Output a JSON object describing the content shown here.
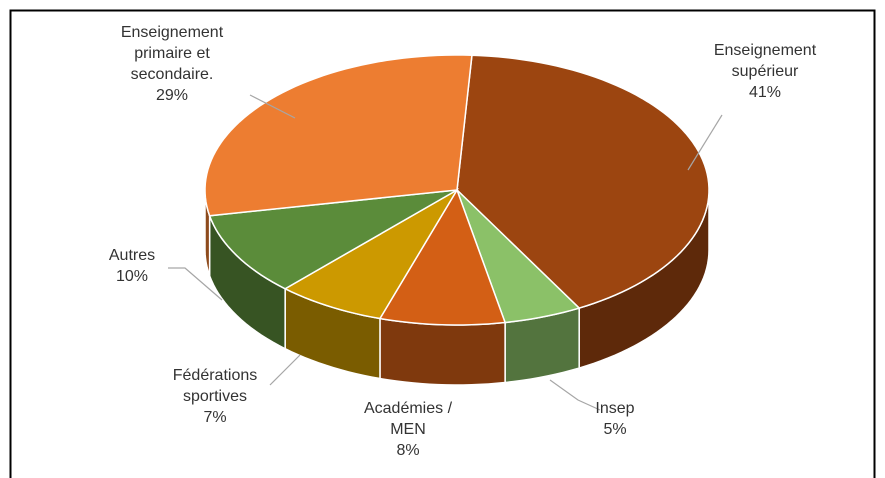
{
  "chart_data": {
    "type": "pie3d",
    "categories": [
      "Enseignement supérieur",
      "Insep",
      "Académies / MEN",
      "Fédérations sportives",
      "Autres",
      "Enseignement primaire et secondaire."
    ],
    "values": [
      41,
      5,
      8,
      7,
      10,
      29
    ],
    "value_labels": [
      "41%",
      "5%",
      "8%",
      "7%",
      "10%",
      "29%"
    ],
    "colors": [
      "#9c4510",
      "#8bc168",
      "#d35f15",
      "#cc9900",
      "#5b8c3a",
      "#ed7d31"
    ]
  }
}
